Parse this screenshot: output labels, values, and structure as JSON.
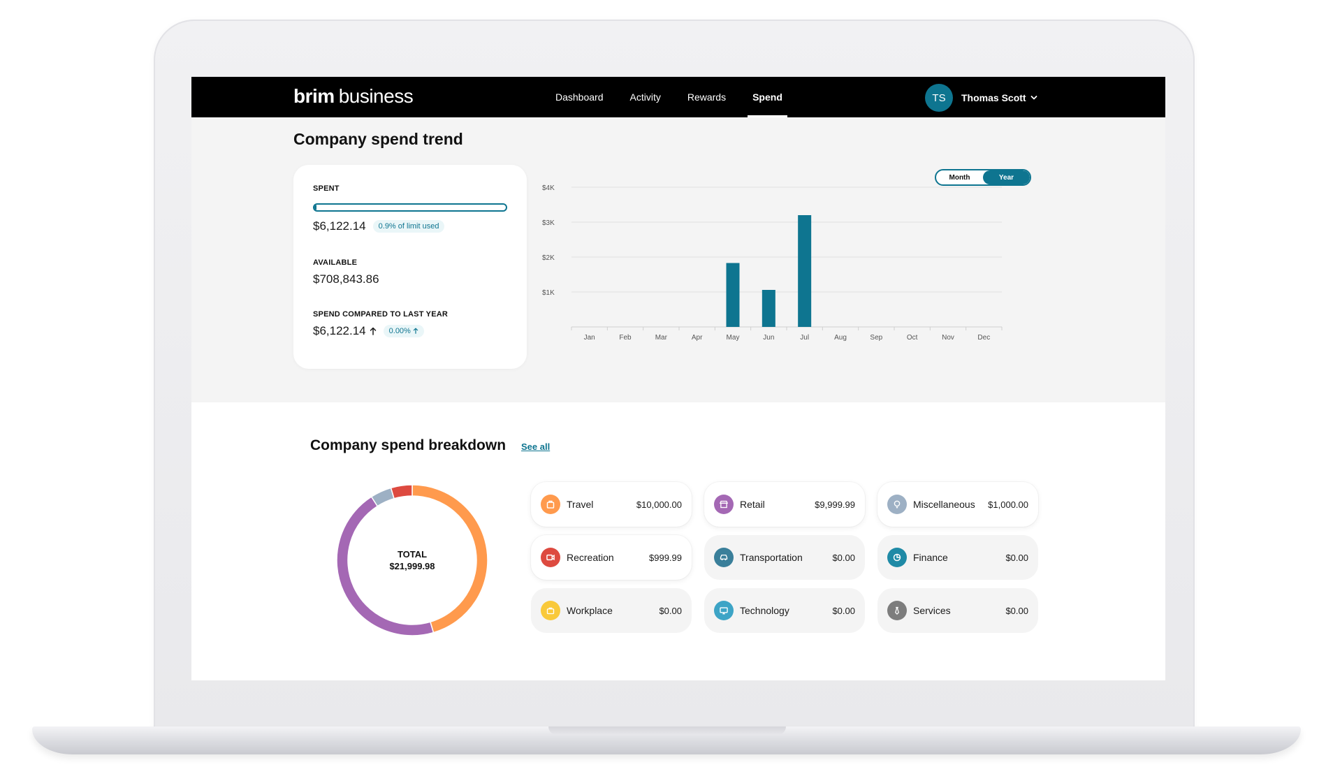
{
  "brand": {
    "logo_bold": "brim",
    "logo_light": "business"
  },
  "nav": {
    "tabs": [
      {
        "label": "Dashboard",
        "active": false
      },
      {
        "label": "Activity",
        "active": false
      },
      {
        "label": "Rewards",
        "active": false
      },
      {
        "label": "Spend",
        "active": true
      }
    ],
    "user": {
      "initials": "TS",
      "name": "Thomas Scott"
    }
  },
  "trend": {
    "title": "Company spend trend",
    "spent": {
      "label": "SPENT",
      "value": "$6,122.14",
      "badge": "0.9% of limit used",
      "fraction_of_limit": 0.009
    },
    "available": {
      "label": "AVAILABLE",
      "value": "$708,843.86"
    },
    "compared": {
      "label": "SPEND COMPARED TO LAST YEAR",
      "value": "$6,122.14",
      "badge": "0.00%"
    },
    "toggle": {
      "options": [
        "Month",
        "Year"
      ],
      "selected": "Year"
    }
  },
  "chart_data": {
    "type": "bar",
    "categories": [
      "Jan",
      "Feb",
      "Mar",
      "Apr",
      "May",
      "Jun",
      "Jul",
      "Aug",
      "Sep",
      "Oct",
      "Nov",
      "Dec"
    ],
    "values": [
      0,
      0,
      0,
      0,
      1830,
      1060,
      3200,
      0,
      0,
      0,
      0,
      0
    ],
    "yticks": [
      1000,
      2000,
      3000,
      4000
    ],
    "ytick_labels": [
      "$1K",
      "$2K",
      "$3K",
      "$4K"
    ],
    "ylim": [
      0,
      4000
    ],
    "grid": true,
    "bar_color": "#0e7590",
    "title": "",
    "xlabel": "",
    "ylabel": ""
  },
  "breakdown": {
    "title": "Company spend breakdown",
    "see_all": "See all",
    "total_label": "TOTAL",
    "total_value": "$21,999.98",
    "donut": [
      {
        "name": "Travel",
        "value": 10000.0,
        "color": "#ff9a4d"
      },
      {
        "name": "Retail",
        "value": 9999.99,
        "color": "#a468b4"
      },
      {
        "name": "Miscellaneous",
        "value": 1000.0,
        "color": "#9db0c4"
      },
      {
        "name": "Recreation",
        "value": 999.99,
        "color": "#dd4a40"
      }
    ],
    "categories": [
      {
        "name": "Travel",
        "amount": "$10,000.00",
        "color": "#ff9a4d",
        "icon": "suitcase-icon"
      },
      {
        "name": "Retail",
        "amount": "$9,999.99",
        "color": "#a468b4",
        "icon": "storefront-icon"
      },
      {
        "name": "Miscellaneous",
        "amount": "$1,000.00",
        "color": "#9db0c4",
        "icon": "lightbulb-icon"
      },
      {
        "name": "Recreation",
        "amount": "$999.99",
        "color": "#dd4a40",
        "icon": "ticket-icon"
      },
      {
        "name": "Transportation",
        "amount": "$0.00",
        "color": "#3a7f9a",
        "icon": "car-icon"
      },
      {
        "name": "Finance",
        "amount": "$0.00",
        "color": "#1f8aa6",
        "icon": "pie-chart-icon"
      },
      {
        "name": "Workplace",
        "amount": "$0.00",
        "color": "#f9c93a",
        "icon": "briefcase-icon"
      },
      {
        "name": "Technology",
        "amount": "$0.00",
        "color": "#3da4c6",
        "icon": "monitor-icon"
      },
      {
        "name": "Services",
        "amount": "$0.00",
        "color": "#7d7d7d",
        "icon": "tie-icon"
      }
    ]
  }
}
